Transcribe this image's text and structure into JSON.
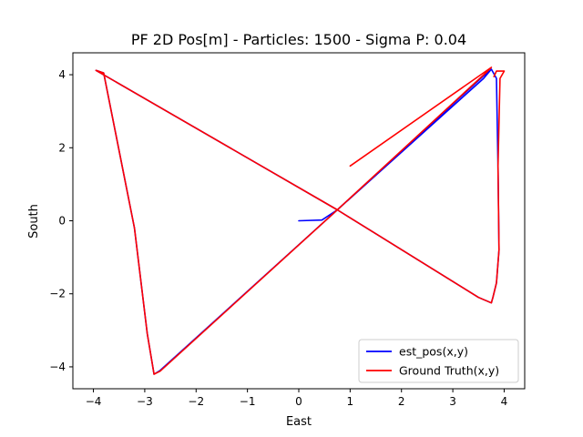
{
  "chart_data": {
    "type": "line",
    "title": "PF 2D Pos[m] - Particles: 1500 - Sigma P: 0.04",
    "xlabel": "East",
    "ylabel": "South",
    "xlim": [
      -4.4,
      4.4
    ],
    "ylim": [
      -4.6,
      4.6
    ],
    "xticks": [
      -4,
      -3,
      -2,
      -1,
      0,
      1,
      2,
      3,
      4
    ],
    "xtick_labels": [
      "−4",
      "−3",
      "−2",
      "−1",
      "0",
      "1",
      "2",
      "3",
      "4"
    ],
    "yticks": [
      -4,
      -2,
      0,
      2,
      4
    ],
    "ytick_labels": [
      "−4",
      "−2",
      "0",
      "2",
      "4"
    ],
    "grid": false,
    "legend_position": "lower-right",
    "series": [
      {
        "name": "est_pos(x,y)",
        "color": "#0000ff",
        "points": [
          [
            0.0,
            0.0
          ],
          [
            0.45,
            0.02
          ],
          [
            0.75,
            0.3
          ],
          [
            3.6,
            3.9
          ],
          [
            3.75,
            4.15
          ],
          [
            3.85,
            3.9
          ],
          [
            3.88,
            1.5
          ],
          [
            3.9,
            -0.8
          ],
          [
            3.85,
            -1.7
          ],
          [
            3.78,
            -2.1
          ],
          [
            3.75,
            -2.25
          ],
          [
            3.5,
            -2.1
          ],
          [
            0.75,
            0.3
          ],
          [
            -3.95,
            4.12
          ],
          [
            -3.8,
            4.05
          ],
          [
            -3.2,
            -0.2
          ],
          [
            -2.95,
            -3.1
          ],
          [
            -2.82,
            -4.2
          ],
          [
            -2.7,
            -4.1
          ],
          [
            0.75,
            0.3
          ],
          [
            3.7,
            4.1
          ]
        ]
      },
      {
        "name": "Ground Truth(x,y)",
        "color": "#ff0000",
        "points": [
          [
            1.0,
            1.5
          ],
          [
            3.75,
            4.2
          ],
          [
            3.68,
            4.1
          ],
          [
            0.75,
            0.3
          ],
          [
            -2.7,
            -4.12
          ],
          [
            -2.82,
            -4.2
          ],
          [
            -2.95,
            -3.1
          ],
          [
            -3.2,
            -0.2
          ],
          [
            -3.8,
            4.05
          ],
          [
            -3.95,
            4.12
          ],
          [
            0.75,
            0.3
          ],
          [
            3.5,
            -2.1
          ],
          [
            3.75,
            -2.25
          ],
          [
            3.78,
            -2.1
          ],
          [
            3.85,
            -1.7
          ],
          [
            3.9,
            -0.8
          ],
          [
            3.88,
            1.5
          ],
          [
            3.92,
            3.9
          ],
          [
            4.0,
            4.1
          ],
          [
            3.85,
            4.1
          ],
          [
            3.8,
            3.95
          ]
        ]
      }
    ]
  }
}
